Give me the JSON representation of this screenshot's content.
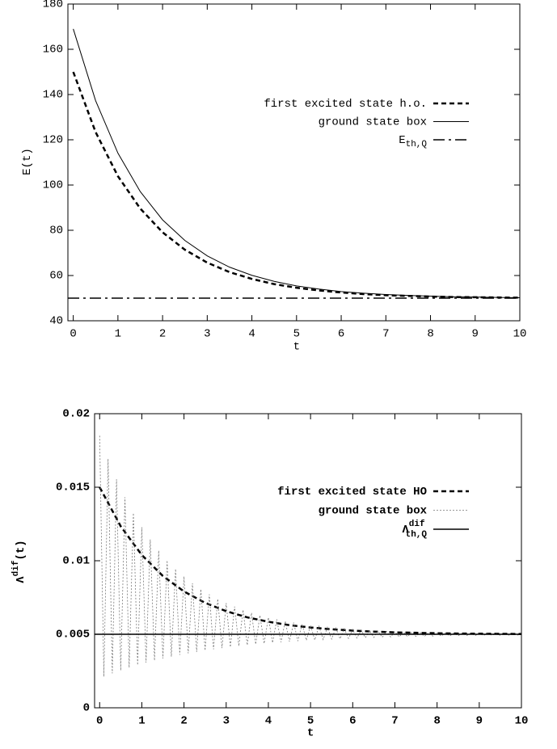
{
  "chart_data": [
    {
      "type": "line",
      "xlabel": "t",
      "ylabel": "E(t)",
      "xlim": [
        -0.12,
        10
      ],
      "xticks": [
        0,
        1,
        2,
        3,
        4,
        5,
        6,
        7,
        8,
        9,
        10
      ],
      "ylim": [
        40,
        180
      ],
      "yticks": [
        40,
        60,
        80,
        100,
        120,
        140,
        160,
        180
      ],
      "x": [
        0,
        0.5,
        1,
        1.5,
        2,
        2.5,
        3,
        3.5,
        4,
        4.5,
        5,
        5.5,
        6,
        6.5,
        7,
        7.5,
        8,
        8.5,
        9,
        9.5,
        10
      ],
      "series": [
        {
          "name": "first excited state h.o.",
          "color": "#000",
          "dash": "dashed",
          "width": 2.5,
          "values": [
            150,
            123.4,
            103.9,
            89.6,
            79.1,
            71.4,
            65.7,
            61.5,
            58.5,
            56.2,
            54.6,
            53.4,
            52.5,
            51.8,
            51.3,
            51.0,
            50.7,
            50.5,
            50.4,
            50.3,
            50.2
          ]
        },
        {
          "name": "ground state box",
          "color": "#000",
          "dash": "solid",
          "width": 1,
          "values": [
            169,
            137.3,
            114.1,
            97.1,
            84.6,
            75.5,
            68.7,
            63.7,
            60.1,
            57.4,
            55.4,
            54.0,
            52.9,
            52.2,
            51.6,
            51.2,
            50.9,
            50.6,
            50.5,
            50.3,
            50.2
          ]
        },
        {
          "name": "E",
          "name_sub": "th,Q",
          "color": "#000",
          "dash": "dash-dot",
          "width": 1.5,
          "x": [
            -0.12,
            10
          ],
          "values": [
            50,
            50
          ]
        }
      ]
    },
    {
      "type": "line",
      "xlabel": "t",
      "ylabel": "Λ",
      "ylabel_sup": "dif",
      "ylabel_tail": "(t)",
      "xlim": [
        -0.12,
        10
      ],
      "xticks": [
        0,
        1,
        2,
        3,
        4,
        5,
        6,
        7,
        8,
        9,
        10
      ],
      "ylim": [
        0,
        0.02
      ],
      "yticks": [
        0,
        0.005,
        0.01,
        0.015,
        0.02
      ],
      "x": [
        0,
        0.5,
        1,
        1.5,
        2,
        2.5,
        3,
        3.5,
        4,
        4.5,
        5,
        5.5,
        6,
        6.5,
        7,
        7.5,
        8,
        8.5,
        9,
        9.5,
        10
      ],
      "series": [
        {
          "name": "first excited state HO",
          "color": "#000",
          "dash": "dashed",
          "width": 2.5,
          "values": [
            0.015,
            0.01234,
            0.01039,
            0.00896,
            0.00791,
            0.00714,
            0.00657,
            0.00615,
            0.00585,
            0.00562,
            0.00546,
            0.00534,
            0.00525,
            0.00518,
            0.00513,
            0.0051,
            0.00507,
            0.00505,
            0.00504,
            0.00503,
            0.00502
          ]
        },
        {
          "name": "ground state box",
          "color": "#777",
          "dash": "dotted",
          "width": 0.8,
          "x": [
            0,
            0.1,
            0.2,
            0.3,
            0.4,
            0.5,
            0.6,
            0.7,
            0.8,
            0.9,
            1,
            1.1,
            1.2,
            1.3,
            1.4,
            1.5,
            1.6,
            1.7,
            1.8,
            1.9,
            2,
            2.1,
            2.2,
            2.3,
            2.4,
            2.5,
            2.6,
            2.7,
            2.8,
            2.9,
            3,
            3.1,
            3.2,
            3.3,
            3.4,
            3.5,
            3.6,
            3.7,
            3.8,
            3.9,
            4,
            4.1,
            4.2,
            4.3,
            4.4,
            4.5,
            4.6,
            4.7,
            4.8,
            4.9,
            5,
            5.1,
            5.2,
            5.3,
            5.4,
            5.5,
            5.6,
            5.7,
            5.8,
            5.9,
            6,
            6.1,
            6.2,
            6.3,
            6.4,
            6.5,
            6.6,
            6.7,
            6.8,
            6.9,
            7,
            7.1,
            7.2,
            7.3,
            7.4,
            7.5,
            7.6,
            7.7,
            7.8,
            7.9,
            8,
            8.1,
            8.2,
            8.3,
            8.4,
            8.5,
            8.6,
            8.7,
            8.8,
            8.9,
            9,
            9.1,
            9.2,
            9.3,
            9.4,
            9.5,
            9.6,
            9.7,
            9.8,
            9.9,
            10
          ],
          "values": [
            0.0185,
            0.00212,
            0.01693,
            0.00234,
            0.01554,
            0.00254,
            0.01432,
            0.00273,
            0.01324,
            0.00291,
            0.01228,
            0.00307,
            0.01144,
            0.00322,
            0.01069,
            0.00335,
            0.01002,
            0.00348,
            0.00944,
            0.0036,
            0.00893,
            0.0037,
            0.00847,
            0.0038,
            0.00806,
            0.0039,
            0.00771,
            0.00398,
            0.0074,
            0.00406,
            0.00712,
            0.00413,
            0.00688,
            0.0042,
            0.00666,
            0.00426,
            0.00646,
            0.00432,
            0.00629,
            0.00437,
            0.00614,
            0.00442,
            0.00601,
            0.00446,
            0.00589,
            0.0045,
            0.00579,
            0.00454,
            0.0057,
            0.00458,
            0.00562,
            0.00461,
            0.00555,
            0.00464,
            0.00548,
            0.00467,
            0.00543,
            0.00469,
            0.00538,
            0.00472,
            0.00533,
            0.00474,
            0.00529,
            0.00476,
            0.00526,
            0.00478,
            0.00523,
            0.00479,
            0.0052,
            0.00481,
            0.00518,
            0.00482,
            0.00516,
            0.00484,
            0.00514,
            0.00485,
            0.00512,
            0.00486,
            0.00511,
            0.00487,
            0.0051,
            0.00488,
            0.00509,
            0.00489,
            0.00508,
            0.0049,
            0.00507,
            0.00491,
            0.00506,
            0.00491,
            0.00505,
            0.00492,
            0.00505,
            0.00493,
            0.00504,
            0.00493,
            0.00504,
            0.00494,
            0.00503,
            0.00494,
            0.00503
          ]
        },
        {
          "name": "Λ",
          "name_sup": "dif",
          "name_sub": "th,Q",
          "color": "#000",
          "dash": "solid",
          "width": 1.5,
          "x": [
            -0.12,
            10
          ],
          "values": [
            0.005,
            0.005
          ]
        }
      ]
    }
  ]
}
